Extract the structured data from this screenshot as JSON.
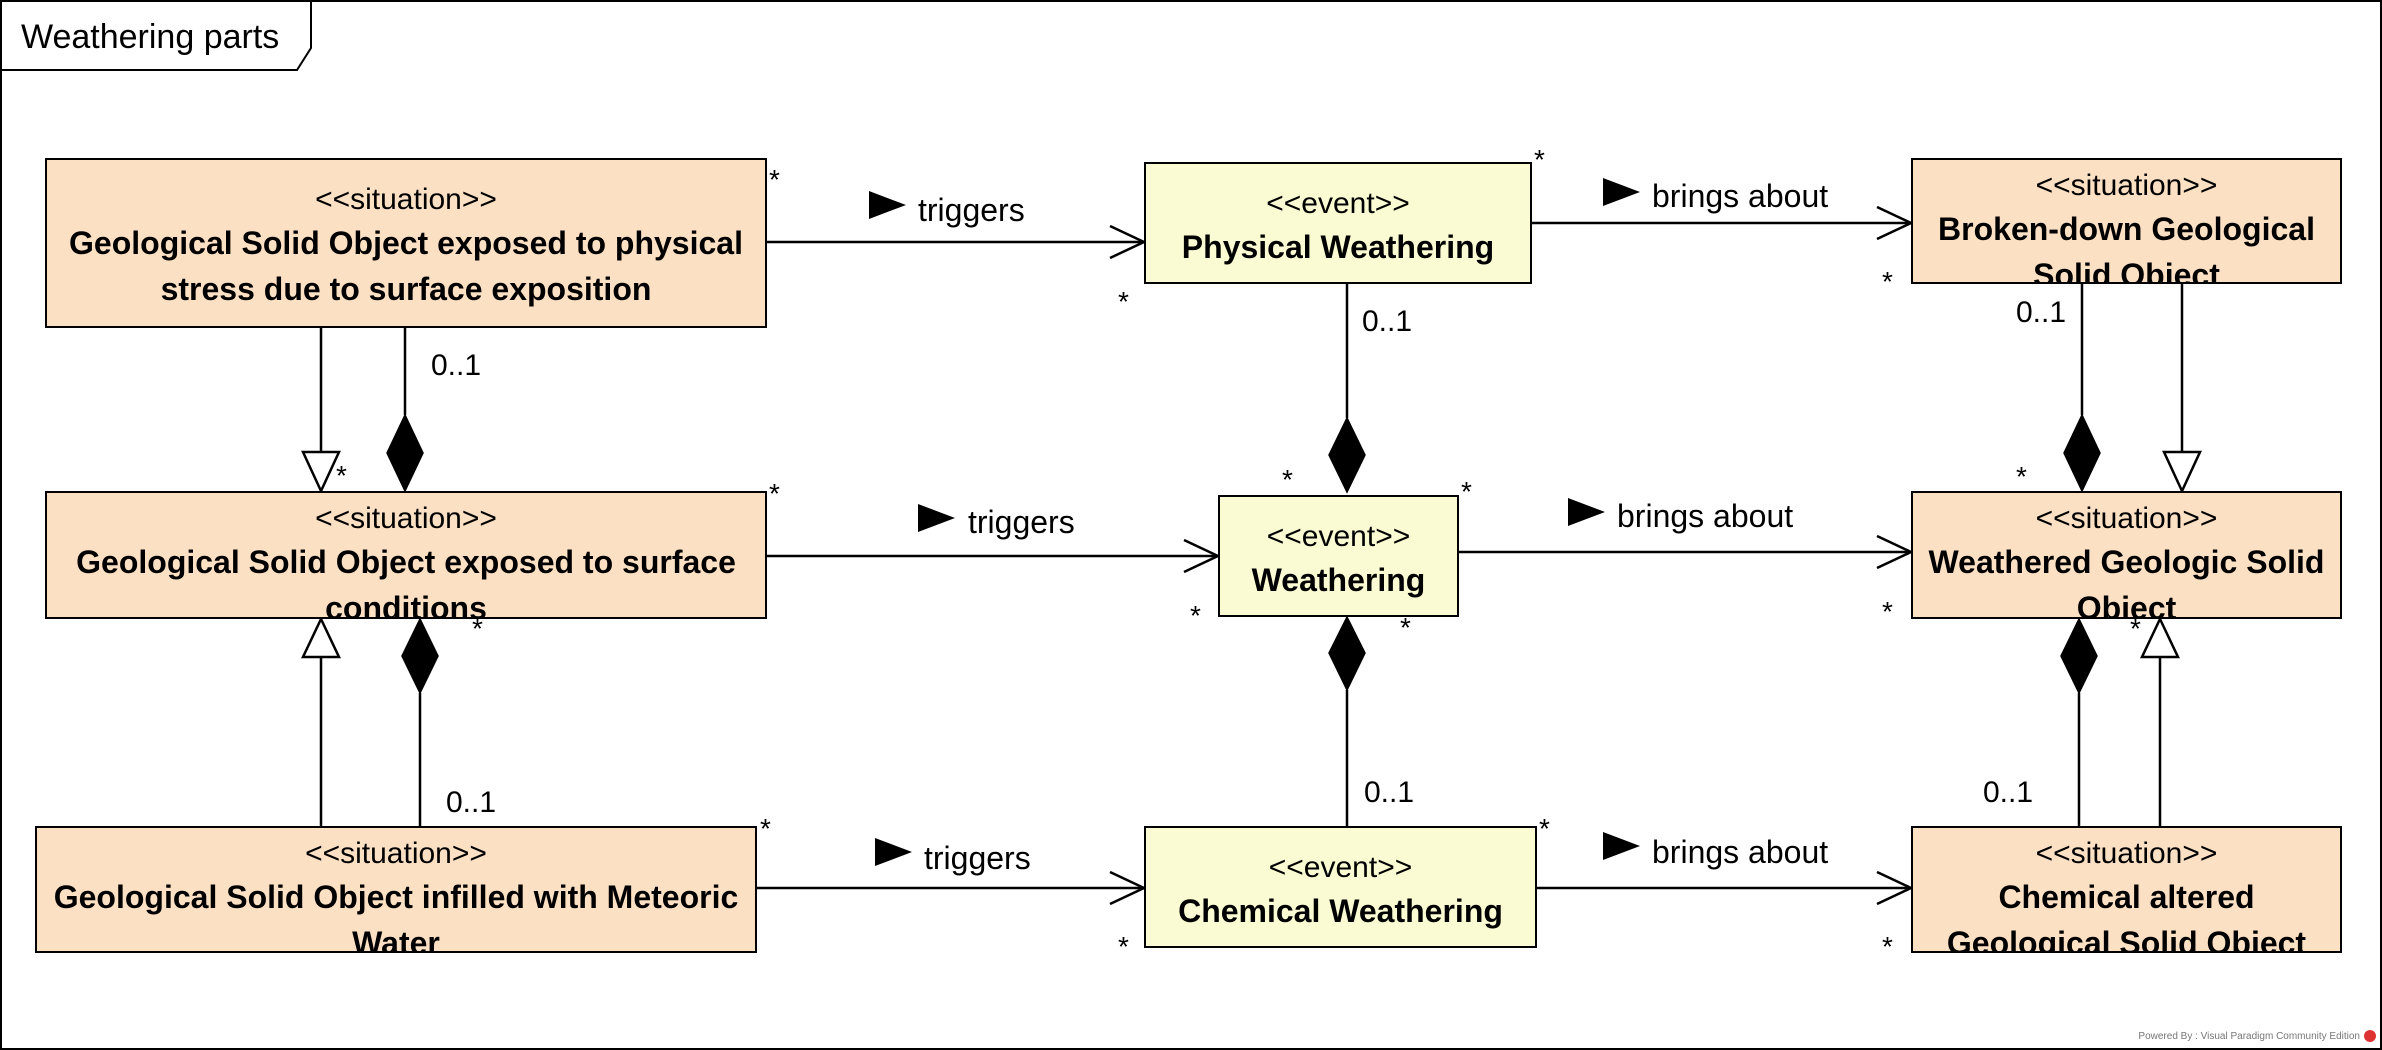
{
  "frame": {
    "title": "Weathering parts"
  },
  "boxes": {
    "solid_exposed_stress": {
      "stereotype": "<<situation>>",
      "name": "Geological Solid Object exposed to physical stress due to surface exposition"
    },
    "physical_weathering": {
      "stereotype": "<<event>>",
      "name": "Physical Weathering"
    },
    "broken_down": {
      "stereotype": "<<situation>>",
      "name": "Broken-down Geological Solid Object"
    },
    "solid_exposed_surface": {
      "stereotype": "<<situation>>",
      "name": "Geological Solid Object exposed to surface conditions"
    },
    "weathering": {
      "stereotype": "<<event>>",
      "name": "Weathering"
    },
    "weathered": {
      "stereotype": "<<situation>>",
      "name": "Weathered Geologic Solid Object"
    },
    "solid_infilled": {
      "stereotype": "<<situation>>",
      "name": "Geological Solid Object infilled with Meteoric Water"
    },
    "chemical_weathering": {
      "stereotype": "<<event>>",
      "name": "Chemical Weathering"
    },
    "chemical_altered": {
      "stereotype": "<<situation>>",
      "name": "Chemical altered Geological Solid Object"
    }
  },
  "associations": {
    "triggers_top": "triggers",
    "triggers_mid": "triggers",
    "triggers_bottom": "triggers",
    "brings_top": "brings about",
    "brings_mid": "brings about",
    "brings_bottom": "brings about"
  },
  "multiplicities": {
    "zero_one": "0..1",
    "many": "*"
  },
  "footer": {
    "watermark": "Powered By : Visual Paradigm Community Edition"
  }
}
